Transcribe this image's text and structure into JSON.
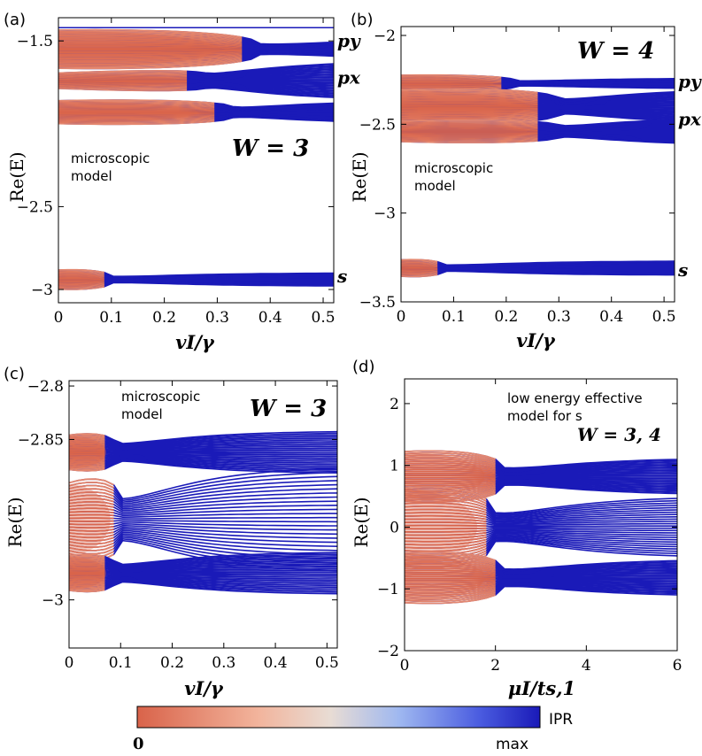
{
  "colors": {
    "warm": "#d9634a",
    "cold": "#1a1ab8",
    "mid": "#e8d8cc"
  },
  "colorbar": {
    "min_label": "0",
    "max_label": "max",
    "title": "IPR"
  },
  "chart_data": [
    {
      "type": "line",
      "panel": "(a)",
      "xlabel": "v_I/γ",
      "xlabel_text": "vI/γ",
      "ylabel": "Re(E)",
      "xlim": [
        0,
        0.52
      ],
      "ylim": [
        -3.08,
        -1.36
      ],
      "xticks": [
        0,
        0.1,
        0.2,
        0.3,
        0.4,
        0.5
      ],
      "xtick_labels": [
        "0",
        "0.1",
        "0.2",
        "0.3",
        "0.4",
        "0.5"
      ],
      "yticks": [
        -1.5,
        -2.5,
        -3
      ],
      "ytick_labels": [
        "−1.5",
        "−2.5",
        "−3"
      ],
      "annotation": "microscopic model",
      "annotation_lines": [
        "microscopic",
        "model"
      ],
      "big_label": "W = 3",
      "side_labels": [
        {
          "text": "p_y",
          "display": "py",
          "y": -1.5
        },
        {
          "text": "p_x",
          "display": "px",
          "y": -1.72
        },
        {
          "text": "s",
          "display": "s",
          "y": -2.92
        }
      ],
      "bands": [
        {
          "center": -1.42,
          "half": 0.0,
          "ex": 0.0,
          "fan": 0.0,
          "flat": true
        },
        {
          "center": -1.55,
          "half": 0.1,
          "ex": 0.38,
          "fan": 0.06
        },
        {
          "center": -1.74,
          "half": 0.04,
          "ex": 0.28,
          "fan": 0.12
        },
        {
          "center": -1.93,
          "half": 0.06,
          "ex": 0.33,
          "fan": 0.07
        },
        {
          "center": -2.94,
          "half": 0.05,
          "ex": 0.1,
          "fan": 0.04
        }
      ]
    },
    {
      "type": "line",
      "panel": "(b)",
      "xlabel": "v_I/γ",
      "xlabel_text": "vI/γ",
      "ylabel": "Re(E)",
      "xlim": [
        0,
        0.52
      ],
      "ylim": [
        -3.5,
        -1.95
      ],
      "xticks": [
        0,
        0.1,
        0.2,
        0.3,
        0.4,
        0.5
      ],
      "xtick_labels": [
        "0",
        "0.1",
        "0.2",
        "0.3",
        "0.4",
        "0.5"
      ],
      "yticks": [
        -2,
        -2.5,
        -3,
        -3.5
      ],
      "ytick_labels": [
        "−2",
        "−2.5",
        "−3",
        "−3.5"
      ],
      "annotation": "microscopic model",
      "annotation_lines": [
        "microscopic",
        "model"
      ],
      "big_label": "W = 4",
      "side_labels": [
        {
          "text": "p_y",
          "display": "py",
          "y": -2.26
        },
        {
          "text": "p_x",
          "display": "px",
          "y": -2.47
        },
        {
          "text": "s",
          "display": "s",
          "y": -3.32
        }
      ],
      "bands": [
        {
          "center": -2.27,
          "half": 0.04,
          "ex": 0.22,
          "fan": 0.03
        },
        {
          "center": -2.4,
          "half": 0.08,
          "ex": 0.3,
          "fan": 0.1
        },
        {
          "center": -2.54,
          "half": 0.05,
          "ex": 0.3,
          "fan": 0.08
        },
        {
          "center": -3.31,
          "half": 0.04,
          "ex": 0.08,
          "fan": 0.04
        }
      ]
    },
    {
      "type": "line",
      "panel": "(c)",
      "xlabel": "v_I/γ",
      "xlabel_text": "vI/γ",
      "ylabel": "Re(E)",
      "xlim": [
        0,
        0.52
      ],
      "ylim": [
        -3.045,
        -2.795
      ],
      "xticks": [
        0,
        0.1,
        0.2,
        0.3,
        0.4,
        0.5
      ],
      "xtick_labels": [
        "0",
        "0.1",
        "0.2",
        "0.3",
        "0.4",
        "0.5"
      ],
      "yticks": [
        -2.8,
        -2.85,
        -3
      ],
      "ytick_labels": [
        "−2.8",
        "−2.85",
        "−3"
      ],
      "annotation": "microscopic model",
      "annotation_lines": [
        "microscopic",
        "model"
      ],
      "big_label": "W = 3",
      "bands": [
        {
          "center": -2.862,
          "half": 0.014,
          "ex": 0.09,
          "fan": 0.02
        },
        {
          "center": -2.925,
          "half": 0.03,
          "ex": 0.1,
          "fan": 0.05
        },
        {
          "center": -2.975,
          "half": 0.014,
          "ex": 0.09,
          "fan": 0.02
        }
      ]
    },
    {
      "type": "line",
      "panel": "(d)",
      "xlabel": "μ_I/t_{s,1}",
      "xlabel_text": "μI/ts,1",
      "ylabel": "Re(E)",
      "xlim": [
        0,
        6
      ],
      "ylim": [
        -2,
        2.4
      ],
      "xticks": [
        0,
        2,
        4,
        6
      ],
      "xtick_labels": [
        "0",
        "2",
        "4",
        "6"
      ],
      "yticks": [
        2,
        1,
        0,
        -1,
        -2
      ],
      "ytick_labels": [
        "2",
        "1",
        "0",
        "−1",
        "−2"
      ],
      "annotation": "low energy effective model for s",
      "annotation_lines": [
        "low energy effective",
        "model for s"
      ],
      "big_label": "W = 3, 4",
      "bands": [
        {
          "center": 0.82,
          "half": 0.35,
          "ex": 2.2,
          "fan": 0.3
        },
        {
          "center": 0.0,
          "half": 0.55,
          "ex": 2.0,
          "fan": 0.5
        },
        {
          "center": -0.82,
          "half": 0.35,
          "ex": 2.2,
          "fan": 0.3
        }
      ]
    }
  ]
}
